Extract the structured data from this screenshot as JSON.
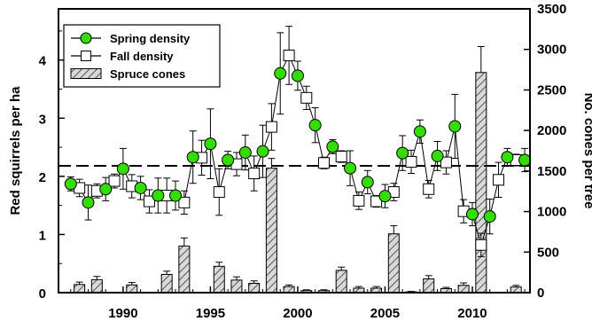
{
  "chart_data": {
    "type": "line",
    "title": "",
    "ylabel_left": "Red squirrels per ha",
    "ylabel_right": "No. cones per tree",
    "xlabel": "",
    "xlim": [
      1986.3,
      2013.3
    ],
    "ylim_left": [
      0,
      4.88
    ],
    "ylim_right": [
      0,
      3500
    ],
    "x_ticks": [
      1990,
      1995,
      2000,
      2005,
      2010
    ],
    "y_left_ticks": [
      0,
      1,
      2,
      3,
      4
    ],
    "y_right_ticks": [
      0,
      500,
      1000,
      1500,
      2000,
      2500,
      3000,
      3500
    ],
    "reference_line": {
      "axis": "left",
      "y": 2.18,
      "style": "dashed"
    },
    "legend": {
      "placement": "top-left",
      "items": [
        "Spring density",
        "Fall density",
        "Spruce cones"
      ]
    },
    "series": [
      {
        "name": "Spring density",
        "kind": "line-markers",
        "marker": "circle",
        "color": "#33dd00",
        "axis": "left",
        "x": [
          1987,
          1988,
          1989,
          1990,
          1991,
          1992,
          1993,
          1994,
          1995,
          1996,
          1997,
          1998,
          1999,
          2000,
          2001,
          2002,
          2003,
          2004,
          2005,
          2006,
          2007,
          2008,
          2009,
          2010,
          2011,
          2012,
          2013
        ],
        "y": [
          1.87,
          1.55,
          1.78,
          2.13,
          1.8,
          1.67,
          1.67,
          2.33,
          2.56,
          2.28,
          2.41,
          2.43,
          3.77,
          3.73,
          2.88,
          2.51,
          2.14,
          1.9,
          1.66,
          2.4,
          2.77,
          2.35,
          2.86,
          1.35,
          1.31,
          2.33,
          2.28
        ],
        "error": [
          0.12,
          0.3,
          0.2,
          0.35,
          0.2,
          0.3,
          0.25,
          0.45,
          0.6,
          0.15,
          0.3,
          0.45,
          0.7,
          0.25,
          0.3,
          0.12,
          0.3,
          0.2,
          0.2,
          0.3,
          0.2,
          0.25,
          0.55,
          0.2,
          0.3,
          0.15,
          0.2
        ]
      },
      {
        "name": "Fall density",
        "kind": "line-markers",
        "marker": "square",
        "color": "#ffffff",
        "axis": "left",
        "x": [
          1987.5,
          1988.5,
          1989.5,
          1990.5,
          1991.5,
          1992.5,
          1993.5,
          1994.5,
          1995.5,
          1996.5,
          1997.5,
          1998.5,
          1999.5,
          2000.5,
          2001.5,
          2002.5,
          2003.5,
          2004.5,
          2005.5,
          2006.5,
          2007.5,
          2008.5,
          2009.5,
          2010.5,
          2011.5,
          2012.5
        ],
        "y": [
          1.8,
          1.75,
          1.92,
          1.83,
          1.57,
          1.67,
          1.55,
          2.32,
          1.73,
          2.21,
          2.05,
          2.85,
          4.08,
          3.35,
          2.23,
          2.34,
          1.58,
          1.57,
          1.73,
          2.25,
          1.78,
          2.24,
          1.4,
          0.82,
          1.94,
          2.28
        ],
        "error": [
          0.15,
          0.12,
          0.12,
          0.2,
          0.2,
          0.3,
          0.2,
          0.3,
          0.4,
          0.2,
          0.3,
          0.4,
          0.5,
          0.2,
          0.1,
          0.1,
          0.15,
          0.1,
          0.15,
          0.2,
          0.15,
          0.2,
          0.2,
          0.2,
          0.3,
          0.1
        ]
      },
      {
        "name": "Spruce cones",
        "kind": "bar",
        "axis": "right",
        "hatch": "diagonal",
        "x": [
          1987.5,
          1988.5,
          1990.5,
          1992.5,
          1993.5,
          1995.5,
          1996.5,
          1997.5,
          1998.5,
          1999.5,
          2000.5,
          2001.5,
          2002.5,
          2003.5,
          2004.5,
          2005.5,
          2006.5,
          2007.5,
          2008.5,
          2009.5,
          2010.5,
          2012.5
        ],
        "values": [
          100,
          160,
          95,
          225,
          575,
          325,
          155,
          115,
          1535,
          75,
          25,
          25,
          275,
          55,
          55,
          725,
          10,
          170,
          50,
          90,
          2715,
          70
        ],
        "error": [
          30,
          40,
          30,
          40,
          100,
          50,
          40,
          30,
          120,
          20,
          10,
          10,
          40,
          20,
          20,
          100,
          5,
          40,
          15,
          30,
          320,
          20
        ]
      }
    ]
  }
}
